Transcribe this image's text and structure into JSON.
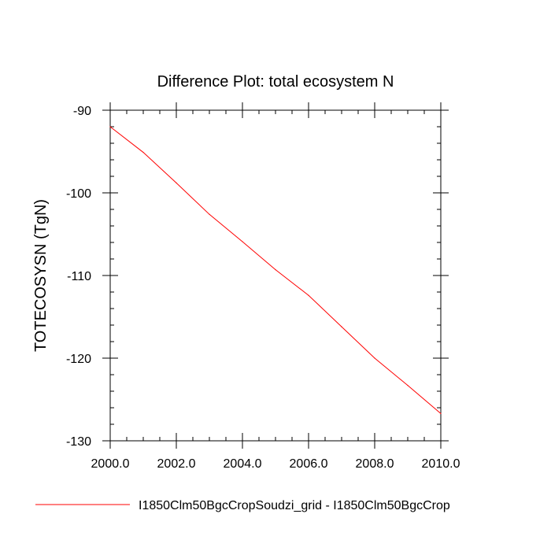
{
  "chart_data": {
    "type": "line",
    "title": "Difference Plot: total ecosystem N",
    "xlabel": "",
    "ylabel": "TOTECOSYSN  (TgN)",
    "xlim": [
      2000,
      2010
    ],
    "ylim": [
      -130,
      -90
    ],
    "x_ticks": [
      2000,
      2002,
      2004,
      2006,
      2008,
      2010
    ],
    "x_tick_labels": [
      "2000.0",
      "2002.0",
      "2004.0",
      "2006.0",
      "2008.0",
      "2010.0"
    ],
    "y_ticks": [
      -90,
      -100,
      -110,
      -120,
      -130
    ],
    "y_tick_labels": [
      "-90",
      "-100",
      "-110",
      "-120",
      "-130"
    ],
    "grid": false,
    "legend_position": "bottom",
    "series": [
      {
        "name": "I1850Clm50BgcCropSoudzi_grid - I1850Clm50BgcCrop",
        "color": "#ff0000",
        "x": [
          2000,
          2001,
          2002,
          2003,
          2004,
          2005,
          2006,
          2007,
          2008,
          2009,
          2010
        ],
        "y": [
          -92.0,
          -95.1,
          -98.8,
          -102.6,
          -105.9,
          -109.3,
          -112.4,
          -116.2,
          -120.0,
          -123.3,
          -126.7
        ]
      }
    ]
  }
}
